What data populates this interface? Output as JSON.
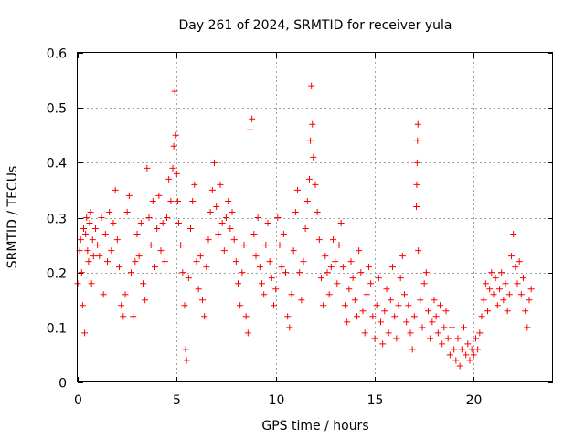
{
  "chart_data": {
    "type": "scatter",
    "title": "Day 261 of 2024, SRMTID for receiver yula",
    "xlabel": "GPS time / hours",
    "ylabel": "SRMTID / TECUs",
    "xlim": [
      0,
      24
    ],
    "ylim": [
      0,
      0.6
    ],
    "xticks": [
      0,
      5,
      10,
      15,
      20
    ],
    "xtick_labels": [
      "0",
      "5",
      "10",
      "15",
      "20"
    ],
    "yticks": [
      0,
      0.1,
      0.2,
      0.3,
      0.4,
      0.5,
      0.6
    ],
    "ytick_labels": [
      "0",
      "0.1",
      "0.2",
      "0.3",
      "0.4",
      "0.5",
      "0.6"
    ],
    "grid": true,
    "marker": "+",
    "color": "#ff0000",
    "series": [
      {
        "name": "SRMTID",
        "points": [
          [
            0.0,
            0.18
          ],
          [
            0.1,
            0.24
          ],
          [
            0.15,
            0.26
          ],
          [
            0.2,
            0.2
          ],
          [
            0.25,
            0.14
          ],
          [
            0.3,
            0.28
          ],
          [
            0.35,
            0.09
          ],
          [
            0.4,
            0.27
          ],
          [
            0.45,
            0.3
          ],
          [
            0.5,
            0.24
          ],
          [
            0.55,
            0.22
          ],
          [
            0.6,
            0.29
          ],
          [
            0.65,
            0.31
          ],
          [
            0.7,
            0.18
          ],
          [
            0.75,
            0.26
          ],
          [
            0.8,
            0.23
          ],
          [
            0.9,
            0.28
          ],
          [
            1.0,
            0.25
          ],
          [
            1.1,
            0.23
          ],
          [
            1.2,
            0.3
          ],
          [
            1.3,
            0.16
          ],
          [
            1.4,
            0.27
          ],
          [
            1.5,
            0.22
          ],
          [
            1.6,
            0.31
          ],
          [
            1.7,
            0.24
          ],
          [
            1.8,
            0.29
          ],
          [
            1.9,
            0.35
          ],
          [
            2.0,
            0.26
          ],
          [
            2.1,
            0.21
          ],
          [
            2.2,
            0.14
          ],
          [
            2.3,
            0.12
          ],
          [
            2.4,
            0.16
          ],
          [
            2.5,
            0.31
          ],
          [
            2.6,
            0.34
          ],
          [
            2.7,
            0.2
          ],
          [
            2.8,
            0.12
          ],
          [
            2.9,
            0.22
          ],
          [
            3.0,
            0.27
          ],
          [
            3.1,
            0.23
          ],
          [
            3.2,
            0.29
          ],
          [
            3.3,
            0.18
          ],
          [
            3.4,
            0.15
          ],
          [
            3.5,
            0.39
          ],
          [
            3.6,
            0.3
          ],
          [
            3.7,
            0.25
          ],
          [
            3.8,
            0.33
          ],
          [
            3.9,
            0.21
          ],
          [
            4.0,
            0.28
          ],
          [
            4.1,
            0.34
          ],
          [
            4.2,
            0.24
          ],
          [
            4.3,
            0.29
          ],
          [
            4.4,
            0.22
          ],
          [
            4.5,
            0.3
          ],
          [
            4.6,
            0.37
          ],
          [
            4.7,
            0.33
          ],
          [
            4.8,
            0.39
          ],
          [
            4.85,
            0.43
          ],
          [
            4.9,
            0.53
          ],
          [
            4.95,
            0.45
          ],
          [
            5.0,
            0.38
          ],
          [
            5.05,
            0.33
          ],
          [
            5.1,
            0.29
          ],
          [
            5.2,
            0.25
          ],
          [
            5.3,
            0.2
          ],
          [
            5.4,
            0.14
          ],
          [
            5.45,
            0.06
          ],
          [
            5.5,
            0.04
          ],
          [
            5.6,
            0.19
          ],
          [
            5.7,
            0.28
          ],
          [
            5.8,
            0.33
          ],
          [
            5.9,
            0.36
          ],
          [
            6.0,
            0.22
          ],
          [
            6.1,
            0.17
          ],
          [
            6.2,
            0.23
          ],
          [
            6.3,
            0.15
          ],
          [
            6.4,
            0.12
          ],
          [
            6.5,
            0.21
          ],
          [
            6.6,
            0.26
          ],
          [
            6.7,
            0.31
          ],
          [
            6.8,
            0.35
          ],
          [
            6.9,
            0.4
          ],
          [
            7.0,
            0.32
          ],
          [
            7.1,
            0.27
          ],
          [
            7.2,
            0.36
          ],
          [
            7.3,
            0.29
          ],
          [
            7.4,
            0.24
          ],
          [
            7.5,
            0.3
          ],
          [
            7.6,
            0.33
          ],
          [
            7.7,
            0.28
          ],
          [
            7.8,
            0.31
          ],
          [
            7.9,
            0.26
          ],
          [
            8.0,
            0.22
          ],
          [
            8.1,
            0.18
          ],
          [
            8.2,
            0.14
          ],
          [
            8.3,
            0.2
          ],
          [
            8.4,
            0.25
          ],
          [
            8.5,
            0.12
          ],
          [
            8.6,
            0.09
          ],
          [
            8.7,
            0.46
          ],
          [
            8.8,
            0.48
          ],
          [
            8.9,
            0.27
          ],
          [
            9.0,
            0.23
          ],
          [
            9.1,
            0.3
          ],
          [
            9.2,
            0.21
          ],
          [
            9.3,
            0.18
          ],
          [
            9.4,
            0.16
          ],
          [
            9.5,
            0.25
          ],
          [
            9.6,
            0.29
          ],
          [
            9.7,
            0.22
          ],
          [
            9.8,
            0.19
          ],
          [
            9.9,
            0.14
          ],
          [
            10.0,
            0.17
          ],
          [
            10.1,
            0.3
          ],
          [
            10.2,
            0.25
          ],
          [
            10.3,
            0.21
          ],
          [
            10.4,
            0.27
          ],
          [
            10.5,
            0.2
          ],
          [
            10.6,
            0.12
          ],
          [
            10.7,
            0.1
          ],
          [
            10.8,
            0.16
          ],
          [
            10.9,
            0.24
          ],
          [
            11.0,
            0.31
          ],
          [
            11.1,
            0.35
          ],
          [
            11.2,
            0.2
          ],
          [
            11.3,
            0.15
          ],
          [
            11.4,
            0.22
          ],
          [
            11.5,
            0.28
          ],
          [
            11.6,
            0.33
          ],
          [
            11.7,
            0.37
          ],
          [
            11.75,
            0.44
          ],
          [
            11.8,
            0.54
          ],
          [
            11.85,
            0.47
          ],
          [
            11.9,
            0.41
          ],
          [
            12.0,
            0.36
          ],
          [
            12.1,
            0.31
          ],
          [
            12.2,
            0.26
          ],
          [
            12.3,
            0.19
          ],
          [
            12.4,
            0.14
          ],
          [
            12.5,
            0.23
          ],
          [
            12.6,
            0.2
          ],
          [
            12.7,
            0.16
          ],
          [
            12.8,
            0.21
          ],
          [
            12.9,
            0.26
          ],
          [
            13.0,
            0.22
          ],
          [
            13.1,
            0.18
          ],
          [
            13.2,
            0.25
          ],
          [
            13.3,
            0.29
          ],
          [
            13.4,
            0.21
          ],
          [
            13.5,
            0.14
          ],
          [
            13.6,
            0.11
          ],
          [
            13.7,
            0.17
          ],
          [
            13.8,
            0.22
          ],
          [
            13.9,
            0.19
          ],
          [
            14.0,
            0.15
          ],
          [
            14.1,
            0.12
          ],
          [
            14.2,
            0.24
          ],
          [
            14.3,
            0.2
          ],
          [
            14.4,
            0.13
          ],
          [
            14.5,
            0.09
          ],
          [
            14.6,
            0.16
          ],
          [
            14.7,
            0.21
          ],
          [
            14.8,
            0.18
          ],
          [
            14.9,
            0.12
          ],
          [
            15.0,
            0.08
          ],
          [
            15.1,
            0.14
          ],
          [
            15.2,
            0.19
          ],
          [
            15.3,
            0.11
          ],
          [
            15.4,
            0.07
          ],
          [
            15.5,
            0.13
          ],
          [
            15.6,
            0.17
          ],
          [
            15.7,
            0.09
          ],
          [
            15.8,
            0.15
          ],
          [
            15.9,
            0.21
          ],
          [
            16.0,
            0.12
          ],
          [
            16.1,
            0.08
          ],
          [
            16.2,
            0.14
          ],
          [
            16.3,
            0.19
          ],
          [
            16.4,
            0.23
          ],
          [
            16.5,
            0.16
          ],
          [
            16.6,
            0.11
          ],
          [
            16.7,
            0.14
          ],
          [
            16.8,
            0.09
          ],
          [
            16.9,
            0.06
          ],
          [
            17.0,
            0.12
          ],
          [
            17.1,
            0.32
          ],
          [
            17.12,
            0.36
          ],
          [
            17.14,
            0.4
          ],
          [
            17.16,
            0.44
          ],
          [
            17.18,
            0.47
          ],
          [
            17.2,
            0.24
          ],
          [
            17.3,
            0.15
          ],
          [
            17.4,
            0.1
          ],
          [
            17.5,
            0.18
          ],
          [
            17.6,
            0.2
          ],
          [
            17.7,
            0.13
          ],
          [
            17.8,
            0.08
          ],
          [
            17.9,
            0.11
          ],
          [
            18.0,
            0.15
          ],
          [
            18.1,
            0.12
          ],
          [
            18.2,
            0.09
          ],
          [
            18.3,
            0.14
          ],
          [
            18.4,
            0.07
          ],
          [
            18.5,
            0.1
          ],
          [
            18.6,
            0.13
          ],
          [
            18.7,
            0.08
          ],
          [
            18.8,
            0.05
          ],
          [
            18.9,
            0.1
          ],
          [
            19.0,
            0.06
          ],
          [
            19.1,
            0.04
          ],
          [
            19.2,
            0.08
          ],
          [
            19.3,
            0.03
          ],
          [
            19.4,
            0.06
          ],
          [
            19.5,
            0.1
          ],
          [
            19.6,
            0.05
          ],
          [
            19.7,
            0.07
          ],
          [
            19.8,
            0.04
          ],
          [
            19.9,
            0.06
          ],
          [
            20.0,
            0.05
          ],
          [
            20.1,
            0.08
          ],
          [
            20.2,
            0.06
          ],
          [
            20.3,
            0.09
          ],
          [
            20.4,
            0.12
          ],
          [
            20.5,
            0.15
          ],
          [
            20.6,
            0.18
          ],
          [
            20.7,
            0.13
          ],
          [
            20.8,
            0.17
          ],
          [
            20.9,
            0.2
          ],
          [
            21.0,
            0.16
          ],
          [
            21.1,
            0.19
          ],
          [
            21.2,
            0.14
          ],
          [
            21.3,
            0.17
          ],
          [
            21.4,
            0.2
          ],
          [
            21.5,
            0.15
          ],
          [
            21.6,
            0.18
          ],
          [
            21.7,
            0.13
          ],
          [
            21.8,
            0.16
          ],
          [
            21.9,
            0.23
          ],
          [
            22.0,
            0.27
          ],
          [
            22.1,
            0.21
          ],
          [
            22.2,
            0.18
          ],
          [
            22.3,
            0.22
          ],
          [
            22.4,
            0.16
          ],
          [
            22.5,
            0.19
          ],
          [
            22.6,
            0.13
          ],
          [
            22.7,
            0.1
          ],
          [
            22.8,
            0.15
          ],
          [
            22.9,
            0.17
          ]
        ]
      }
    ]
  }
}
